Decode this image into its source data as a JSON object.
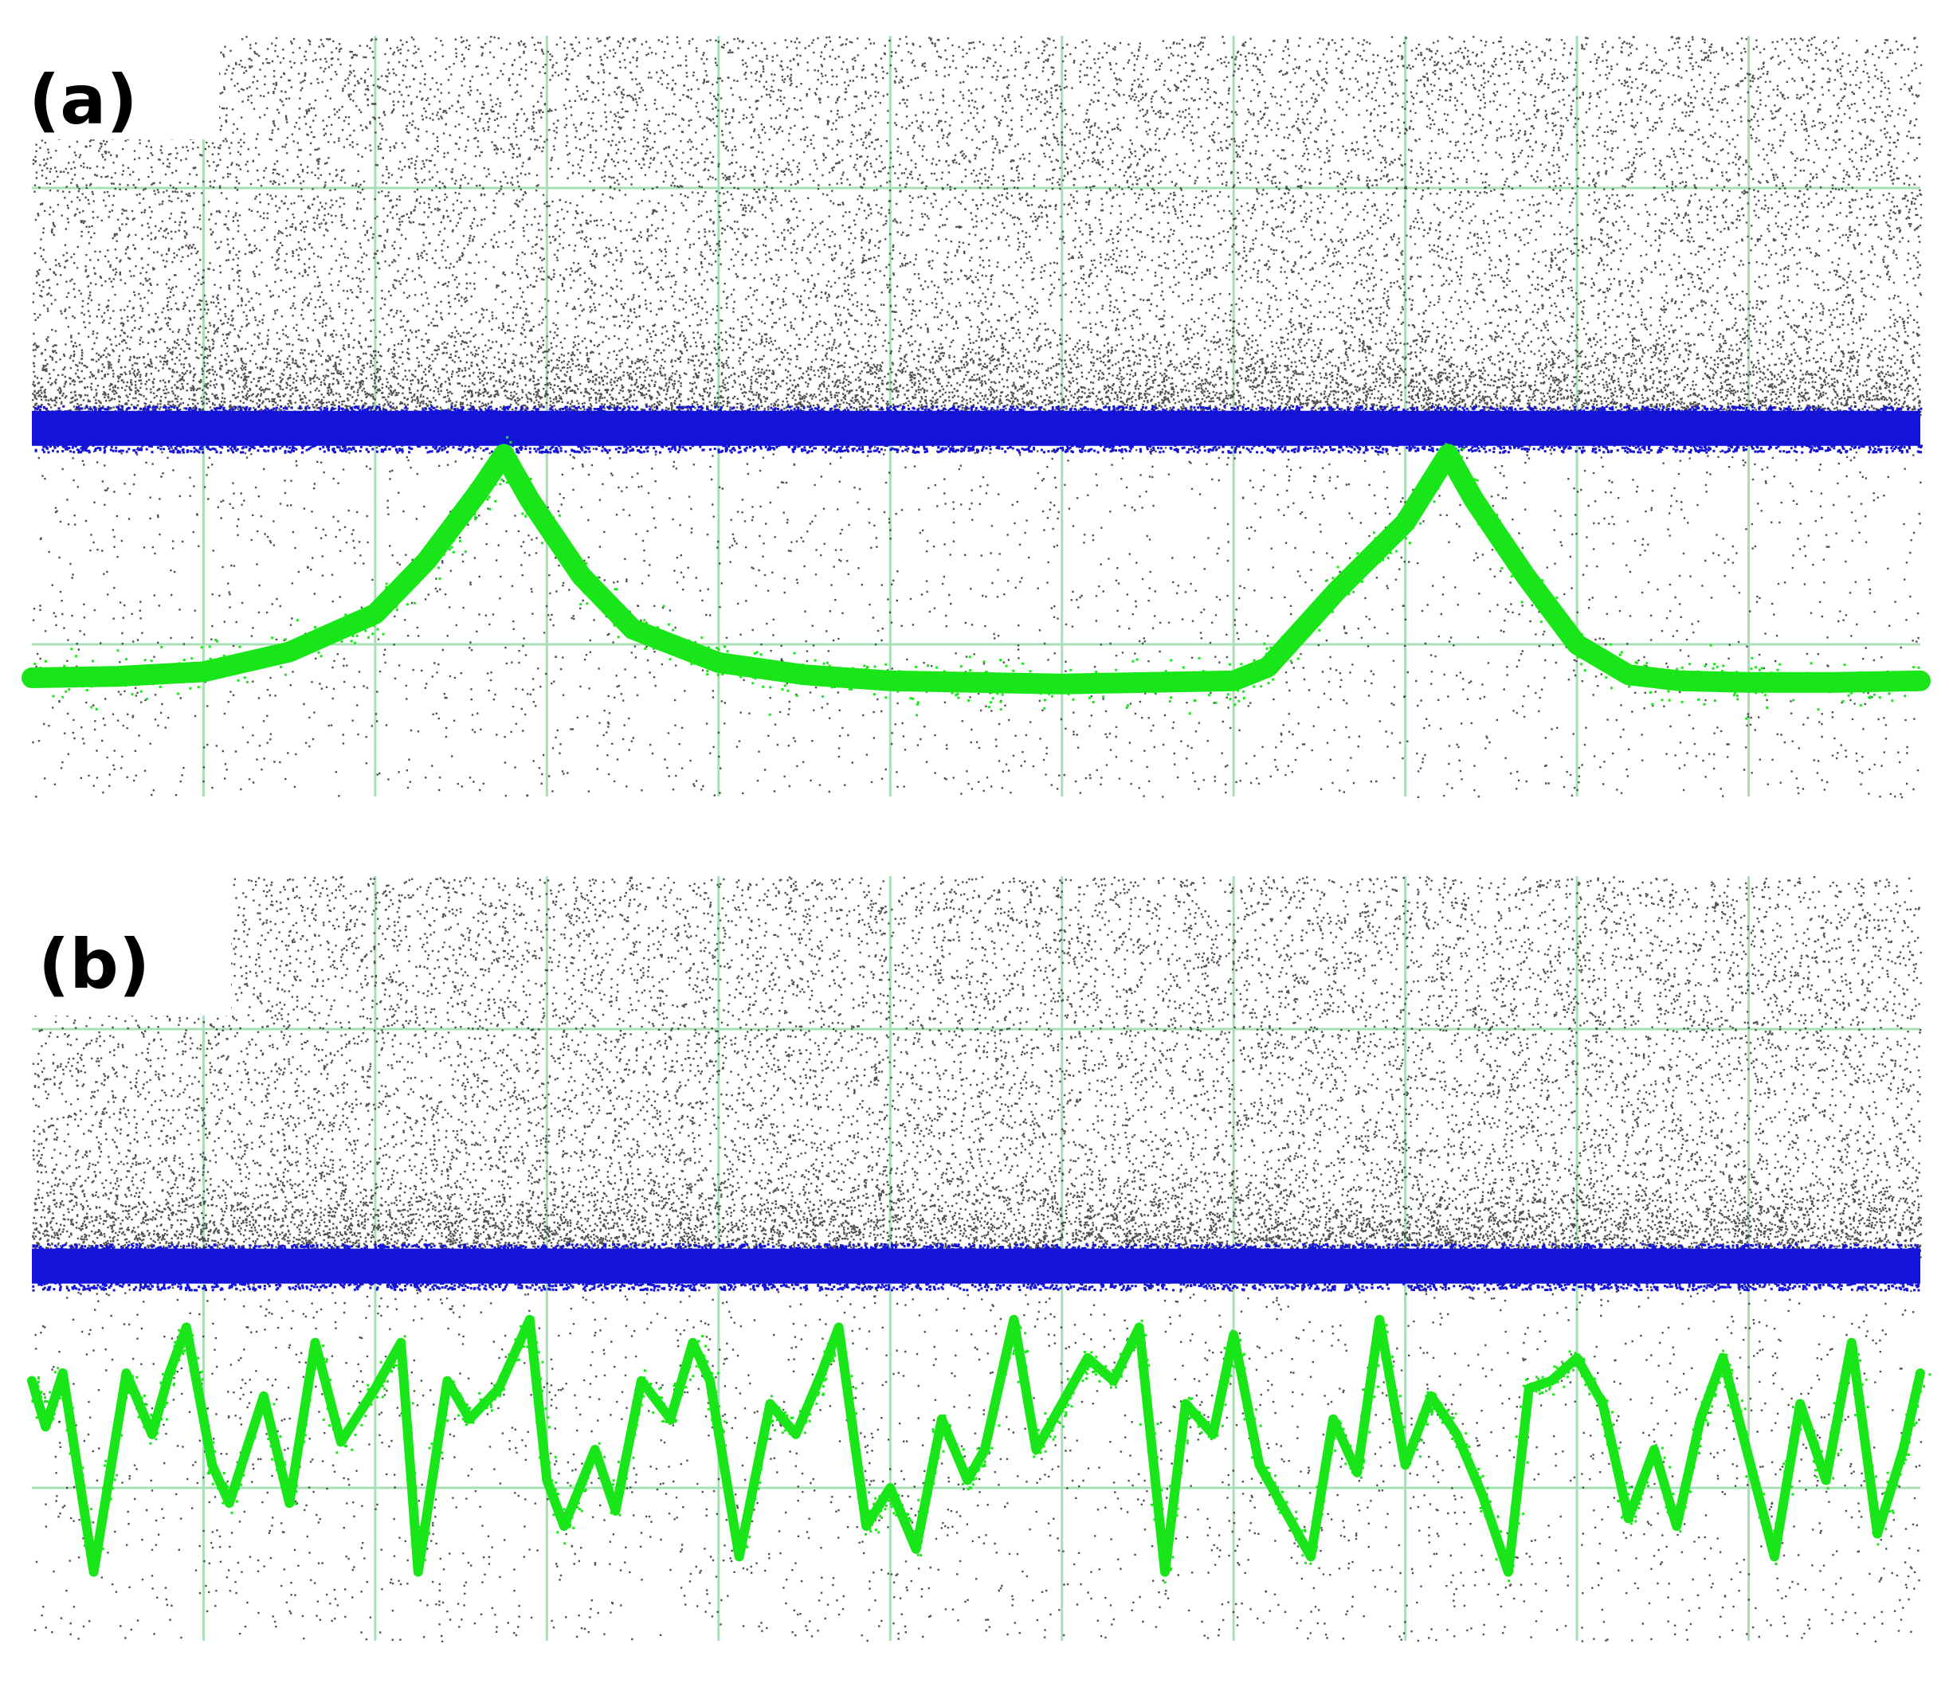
{
  "chart_data": [
    {
      "panel_label": "(a)",
      "type": "line",
      "grid": true,
      "xlim": [
        0,
        11
      ],
      "ylim": [
        0,
        5
      ],
      "colors": {
        "grid": "#a9dfb6",
        "noise": "#333333",
        "baseline": "#1414d8",
        "signal": "#19e619"
      },
      "series": [
        {
          "color": "#1414d8",
          "x": [
            0,
            11
          ],
          "y": [
            2.42,
            2.42
          ]
        },
        {
          "color": "#19e619",
          "x": [
            0,
            0.5,
            1,
            1.5,
            2,
            2.3,
            2.6,
            2.75,
            2.9,
            3.2,
            3.5,
            4,
            4.5,
            5,
            5.5,
            6,
            6.5,
            7,
            7.2,
            7.6,
            8,
            8.25,
            8.4,
            8.7,
            9,
            9.3,
            9.6,
            10,
            10.5,
            11
          ],
          "y": [
            0.78,
            0.79,
            0.82,
            0.95,
            1.2,
            1.55,
            2.0,
            2.25,
            1.95,
            1.45,
            1.1,
            0.88,
            0.8,
            0.76,
            0.75,
            0.74,
            0.75,
            0.76,
            0.85,
            1.35,
            1.8,
            2.25,
            1.95,
            1.45,
            1.0,
            0.8,
            0.76,
            0.75,
            0.75,
            0.76
          ]
        }
      ]
    },
    {
      "panel_label": "(b)",
      "type": "line",
      "grid": true,
      "xlim": [
        0,
        11
      ],
      "ylim": [
        0,
        5
      ],
      "colors": {
        "grid": "#a9dfb6",
        "noise": "#333333",
        "baseline": "#1414d8",
        "signal": "#19e619"
      },
      "series": [
        {
          "color": "#1414d8",
          "x": [
            0,
            11
          ],
          "y": [
            2.45,
            2.45
          ]
        },
        {
          "color": "#19e619",
          "x": [
            0,
            0.08,
            0.18,
            0.36,
            0.55,
            0.7,
            0.8,
            0.9,
            1.05,
            1.15,
            1.35,
            1.5,
            1.65,
            1.8,
            2.0,
            2.15,
            2.25,
            2.42,
            2.55,
            2.72,
            2.9,
            3.0,
            3.1,
            3.28,
            3.4,
            3.55,
            3.72,
            3.85,
            3.95,
            4.12,
            4.3,
            4.45,
            4.6,
            4.7,
            4.86,
            5.0,
            5.15,
            5.3,
            5.45,
            5.55,
            5.72,
            5.85,
            6.0,
            6.15,
            6.3,
            6.45,
            6.6,
            6.72,
            6.88,
            7.0,
            7.15,
            7.3,
            7.45,
            7.58,
            7.72,
            7.85,
            8.0,
            8.15,
            8.3,
            8.45,
            8.6,
            8.72,
            8.85,
            9.0,
            9.15,
            9.3,
            9.45,
            9.58,
            9.72,
            9.85,
            10.0,
            10.15,
            10.3,
            10.45,
            10.6,
            10.75,
            10.9,
            11.0
          ],
          "y": [
            1.7,
            1.4,
            1.75,
            0.45,
            1.75,
            1.35,
            1.75,
            2.05,
            1.15,
            0.9,
            1.6,
            0.9,
            1.95,
            1.3,
            1.65,
            1.95,
            0.45,
            1.7,
            1.45,
            1.65,
            2.1,
            1.05,
            0.75,
            1.25,
            0.85,
            1.7,
            1.45,
            1.95,
            1.7,
            0.55,
            1.55,
            1.35,
            1.75,
            2.05,
            0.75,
            1.0,
            0.6,
            1.45,
            1.05,
            1.25,
            2.1,
            1.25,
            1.55,
            1.85,
            1.7,
            2.05,
            0.45,
            1.55,
            1.35,
            2.0,
            1.15,
            0.85,
            0.55,
            1.45,
            1.1,
            2.1,
            1.15,
            1.6,
            1.35,
            0.95,
            0.45,
            1.65,
            1.7,
            1.85,
            1.55,
            0.8,
            1.25,
            0.75,
            1.45,
            1.85,
            1.2,
            0.55,
            1.55,
            1.05,
            1.95,
            0.7,
            1.25,
            1.75
          ]
        }
      ]
    }
  ]
}
